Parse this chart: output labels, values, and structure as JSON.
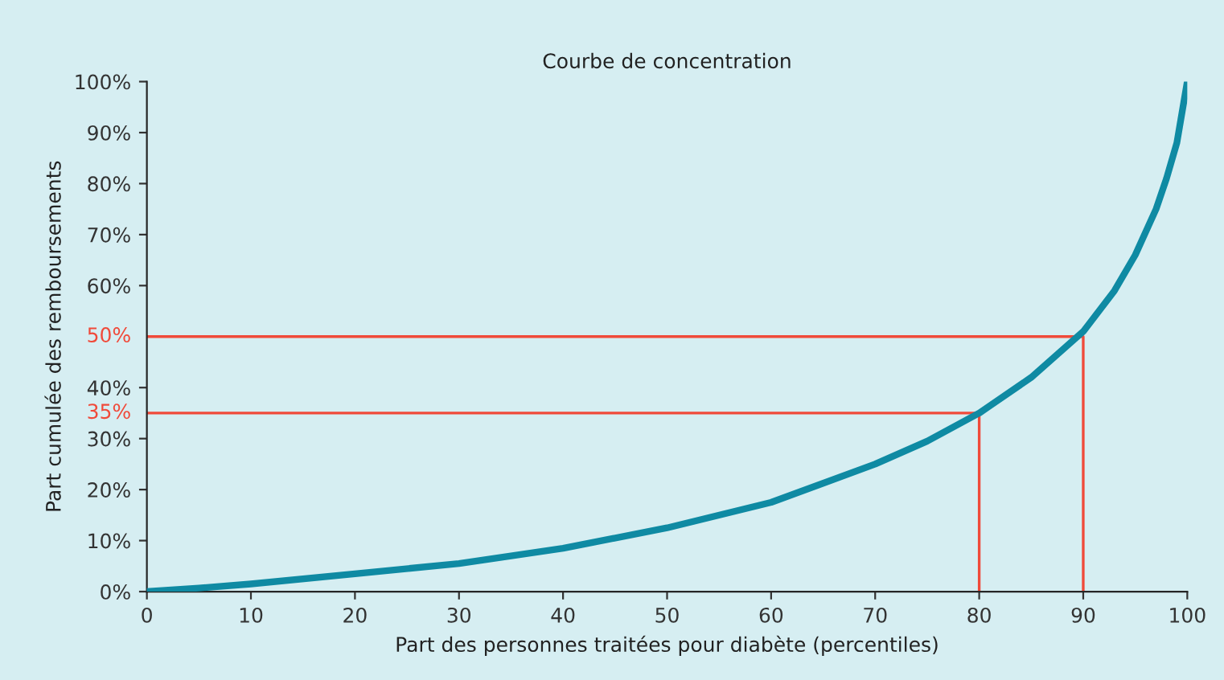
{
  "chart_data": {
    "type": "line",
    "title": "Courbe de concentration",
    "xlabel": "Part des personnes traitées pour diabète (percentiles)",
    "ylabel": "Part cumulée des remboursements",
    "series": [
      {
        "color": "#0f8aa3",
        "x": [
          0,
          5,
          10,
          20,
          30,
          40,
          50,
          60,
          70,
          75,
          80,
          85,
          90,
          93,
          95,
          97,
          98,
          99,
          100
        ],
        "values": [
          0,
          0.7,
          1.5,
          3.5,
          5.5,
          8.5,
          12.5,
          17.5,
          25,
          29.5,
          35,
          42,
          51,
          59,
          66,
          75,
          81,
          88,
          100
        ]
      },
      {
        "color": "#f04a3a",
        "x": [
          0,
          90,
          90
        ],
        "values": [
          50,
          50,
          0
        ]
      },
      {
        "color": "#f04a3a",
        "x": [
          0,
          80,
          80
        ],
        "values": [
          35,
          35,
          0
        ]
      }
    ],
    "annotations": [
      {
        "text": "50%",
        "x": 0,
        "y": 50
      },
      {
        "text": "35%",
        "x": 0,
        "y": 35
      }
    ],
    "xlim": [
      0,
      100
    ],
    "xticks": [
      0,
      10,
      20,
      30,
      40,
      50,
      60,
      70,
      80,
      90,
      100
    ],
    "ylim": [
      0,
      100
    ],
    "yticks": [
      {
        "value": 0,
        "label": "0%"
      },
      {
        "value": 10,
        "label": "10%"
      },
      {
        "value": 20,
        "label": "20%"
      },
      {
        "value": 30,
        "label": "30%"
      },
      {
        "value": 40,
        "label": "40%"
      },
      {
        "value": 60,
        "label": "60%"
      },
      {
        "value": 70,
        "label": "70%"
      },
      {
        "value": 80,
        "label": "80%"
      },
      {
        "value": 90,
        "label": "90%"
      },
      {
        "value": 100,
        "label": "100%"
      }
    ],
    "grid": false
  }
}
